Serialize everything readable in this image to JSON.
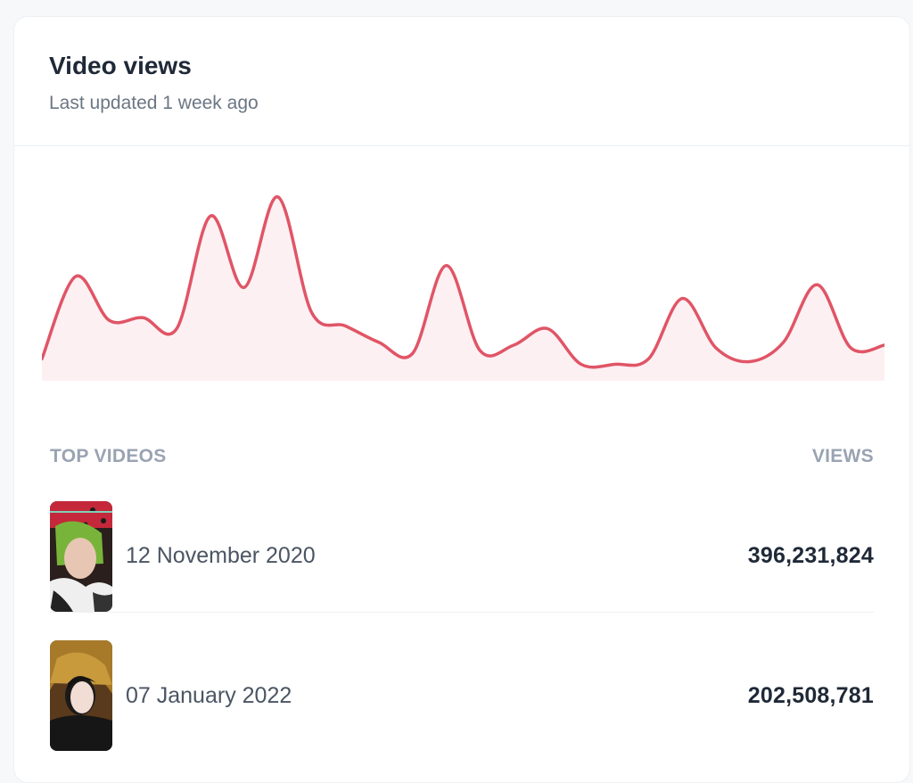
{
  "card": {
    "title": "Video views",
    "subtitle": "Last updated 1 week ago"
  },
  "chart_data": {
    "type": "area",
    "x": [
      0,
      1,
      2,
      3,
      4,
      5,
      6,
      7,
      8,
      9,
      10,
      11,
      12,
      13,
      14,
      15,
      16,
      17,
      18,
      19,
      20,
      21,
      22,
      23,
      24,
      25
    ],
    "values": [
      8,
      38,
      22,
      23,
      19,
      60,
      34,
      67,
      25,
      20,
      14,
      10,
      42,
      11,
      13,
      19,
      6,
      6,
      8,
      30,
      12,
      7,
      14,
      35,
      12,
      13
    ],
    "ylim": [
      0,
      100
    ],
    "line_color": "#e05566",
    "fill_color": "#fdf0f3"
  },
  "table": {
    "col_video": "TOP VIDEOS",
    "col_views": "VIEWS",
    "rows": [
      {
        "date": "12 November 2020",
        "views": "396,231,824"
      },
      {
        "date": "07 January 2022",
        "views": "202,508,781"
      }
    ]
  }
}
